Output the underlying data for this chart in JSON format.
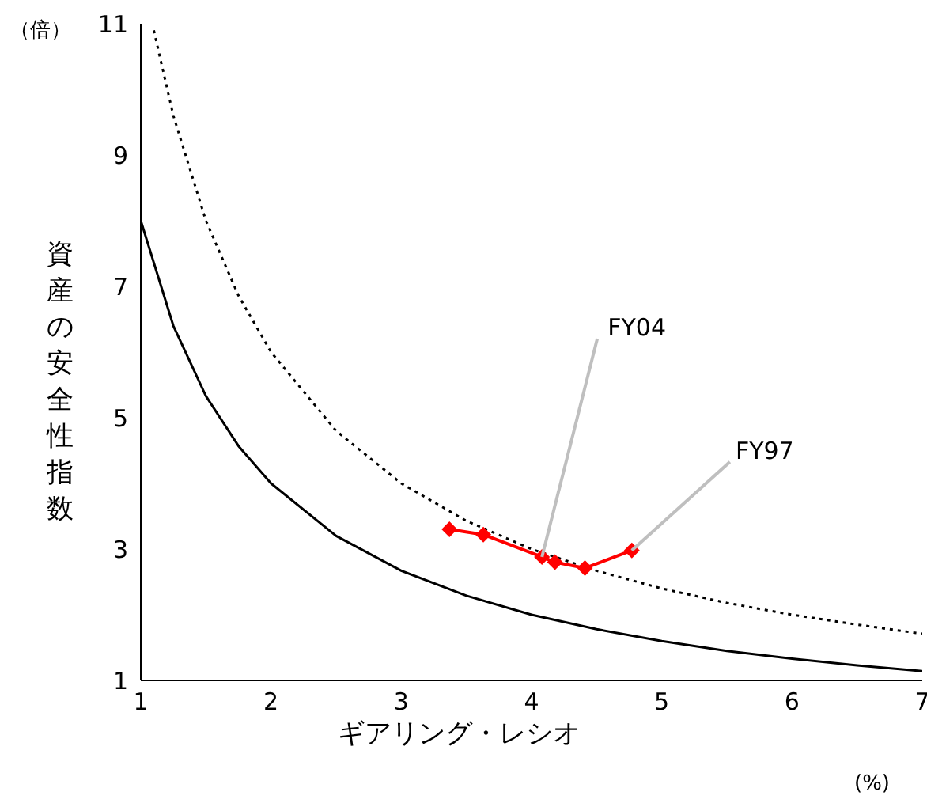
{
  "chart_data": {
    "type": "line",
    "xlabel": "ギアリング・レシオ",
    "ylabel": "資産の安全性指数",
    "xlim": [
      1,
      7
    ],
    "xticks": [
      1,
      2,
      3,
      4,
      5,
      6,
      7
    ],
    "ylim": [
      1,
      11
    ],
    "yticks": [
      1,
      3,
      5,
      7,
      9,
      11
    ],
    "grid": false,
    "legend": false,
    "series": [
      {
        "type": "line",
        "color": "#000000",
        "line_style": "solid",
        "marker": "none",
        "x": [
          1,
          1.25,
          1.5,
          1.75,
          2,
          2.5,
          3,
          3.5,
          4,
          4.5,
          5,
          5.5,
          6,
          6.5,
          7
        ],
        "values": [
          8,
          6.4,
          5.33,
          4.57,
          4,
          3.2,
          2.67,
          2.29,
          2,
          1.78,
          1.6,
          1.45,
          1.33,
          1.23,
          1.14
        ]
      },
      {
        "type": "line",
        "color": "#000000",
        "line_style": "dotted",
        "marker": "none",
        "x": [
          1.1,
          1.25,
          1.5,
          1.75,
          2,
          2.5,
          3,
          3.5,
          4,
          4.5,
          5,
          5.5,
          6,
          6.5,
          7
        ],
        "values": [
          10.9,
          9.6,
          8,
          6.86,
          6,
          4.8,
          4,
          3.43,
          3,
          2.67,
          2.4,
          2.18,
          2,
          1.85,
          1.71
        ]
      },
      {
        "type": "line",
        "color": "#ff0000",
        "line_style": "solid",
        "marker": "diamond",
        "x": [
          3.37,
          3.63,
          4.08,
          4.18,
          4.41,
          4.77
        ],
        "values": [
          3.3,
          3.22,
          2.88,
          2.8,
          2.71,
          2.98
        ]
      }
    ],
    "annotations": [
      {
        "text": "FY04",
        "x": 4.08,
        "y": 2.88
      },
      {
        "text": "FY97",
        "x": 4.77,
        "y": 2.98
      },
      "（倍）",
      "(%)"
    ]
  }
}
